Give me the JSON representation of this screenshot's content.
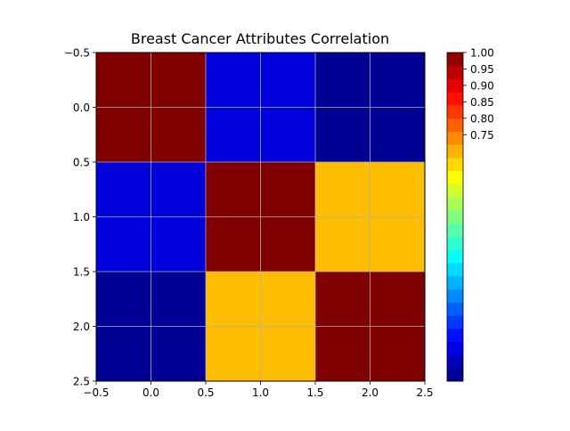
{
  "chart_data": {
    "type": "heatmap",
    "title": "Breast Cancer Attributes Correlation",
    "xlabel": "",
    "ylabel": "",
    "xlim": [
      -0.5,
      2.5
    ],
    "ylim": [
      2.5,
      -0.5
    ],
    "x_ticks": [
      "−0.5",
      "0.0",
      "0.5",
      "1.0",
      "1.5",
      "2.0",
      "2.5"
    ],
    "y_ticks": [
      "−0.5",
      "0.0",
      "0.5",
      "1.0",
      "1.5",
      "2.0",
      "2.5"
    ],
    "matrix": [
      [
        1.0,
        0.09,
        0.02
      ],
      [
        0.09,
        1.0,
        0.69
      ],
      [
        0.02,
        0.69,
        1.0
      ]
    ],
    "grid": true,
    "colormap": "jet",
    "colorbar": {
      "range": [
        0.0,
        1.0
      ],
      "tick_values": [
        0.75,
        0.8,
        0.85,
        0.9,
        0.95,
        1.0
      ],
      "tick_labels": [
        "0.75",
        "0.80",
        "0.85",
        "0.90",
        "0.95",
        "1.00"
      ],
      "levels": 25
    }
  }
}
